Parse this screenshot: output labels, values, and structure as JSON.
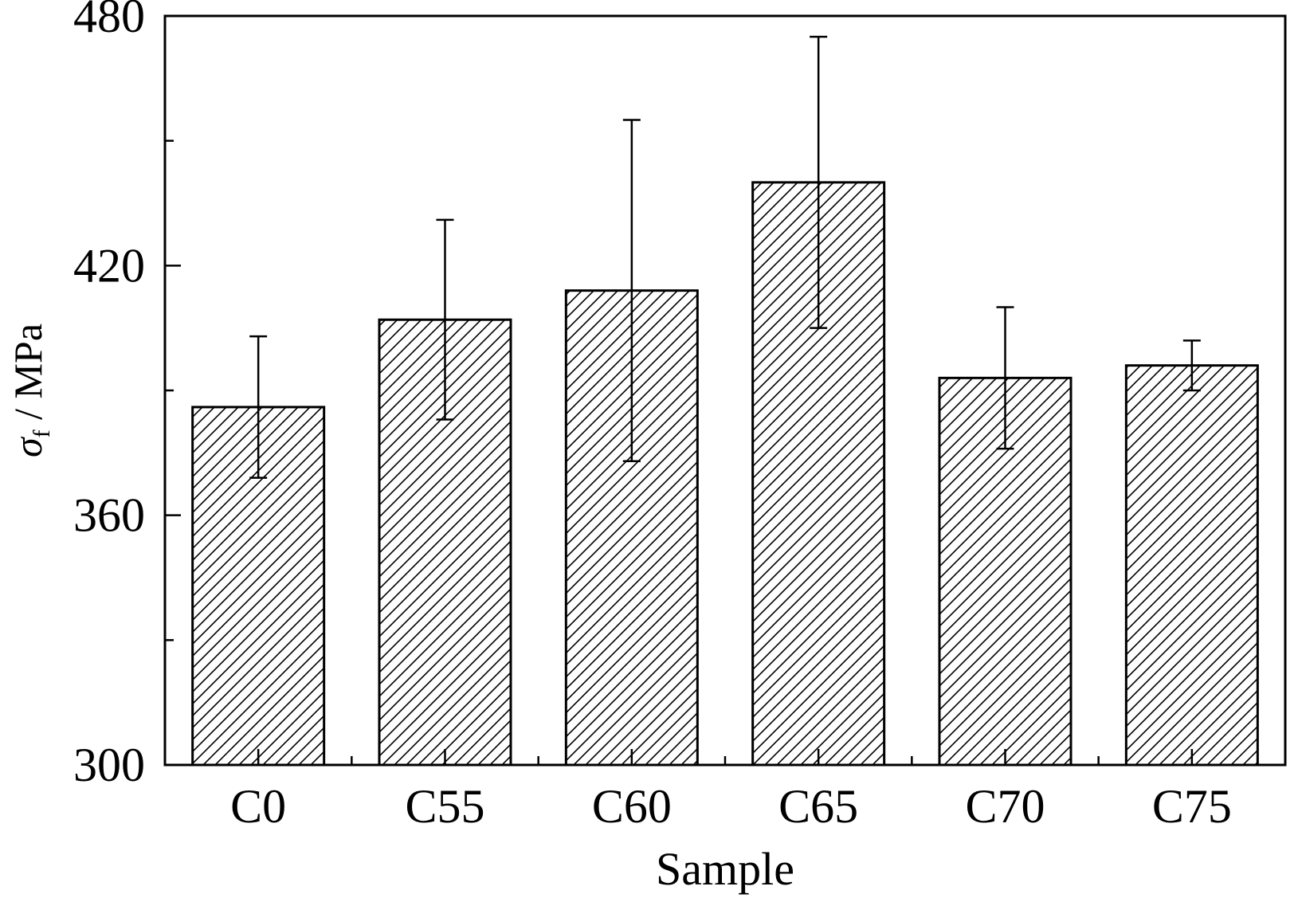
{
  "chart_data": {
    "type": "bar",
    "categories": [
      "C0",
      "C55",
      "C60",
      "C65",
      "C70",
      "C75"
    ],
    "values": [
      386,
      407,
      414,
      440,
      393,
      396
    ],
    "errors": [
      17,
      24,
      41,
      35,
      17,
      6
    ],
    "xlabel": "Sample",
    "ylabel": {
      "symbol": "σ",
      "subscript": "f",
      "unit": " / MPa"
    },
    "ylim": [
      300,
      480
    ],
    "yticks_major": [
      300,
      360,
      420,
      480
    ],
    "yticks_minor": [
      330,
      390,
      450
    ],
    "fill_pattern": "diagonal-hatch",
    "grid": false,
    "legend": "none",
    "colors": {
      "stroke": "#000000",
      "background": "#ffffff"
    }
  }
}
